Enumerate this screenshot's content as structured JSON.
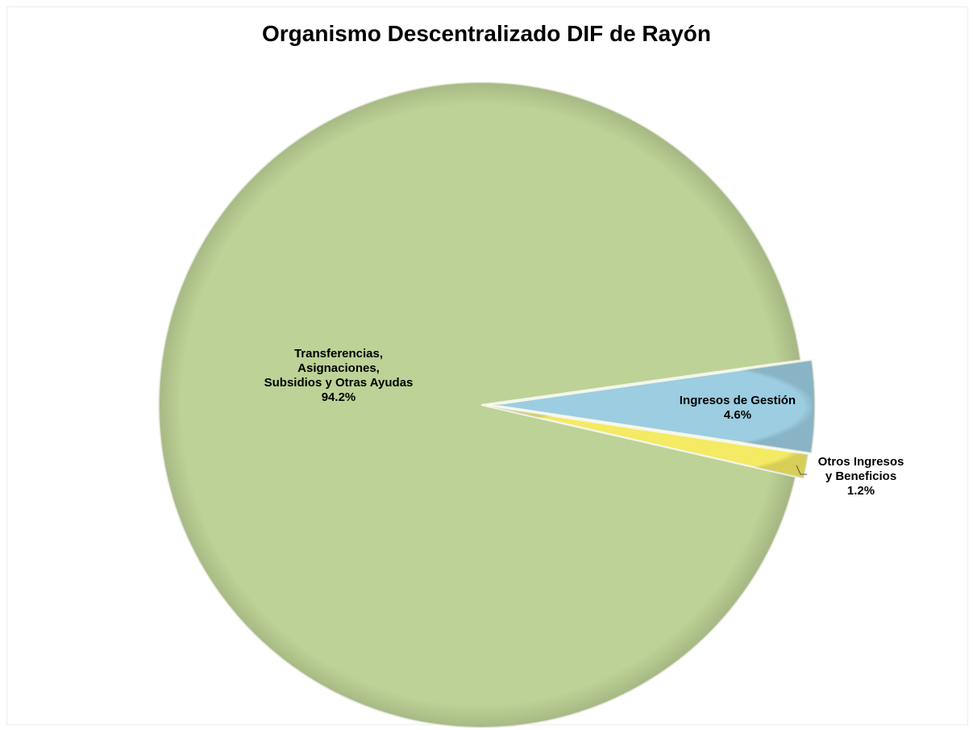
{
  "chart_data": {
    "type": "pie",
    "title": "Organismo Descentralizado DIF de Rayón",
    "slices": [
      {
        "label": [
          "Transferencias,",
          "Asignaciones,",
          "Subsidios y Otras Ayudas"
        ],
        "value": 94.2,
        "value_text": "94.2%",
        "color": "#BDD296"
      },
      {
        "label": [
          "Ingresos de Gestión"
        ],
        "value": 4.6,
        "value_text": "4.6%",
        "color": "#9CCDE0"
      },
      {
        "label": [
          "Otros Ingresos",
          "y Beneficios"
        ],
        "value": 1.2,
        "value_text": "1.2%",
        "color": "#F4EA63"
      }
    ],
    "legend": "none",
    "exploded": true
  }
}
